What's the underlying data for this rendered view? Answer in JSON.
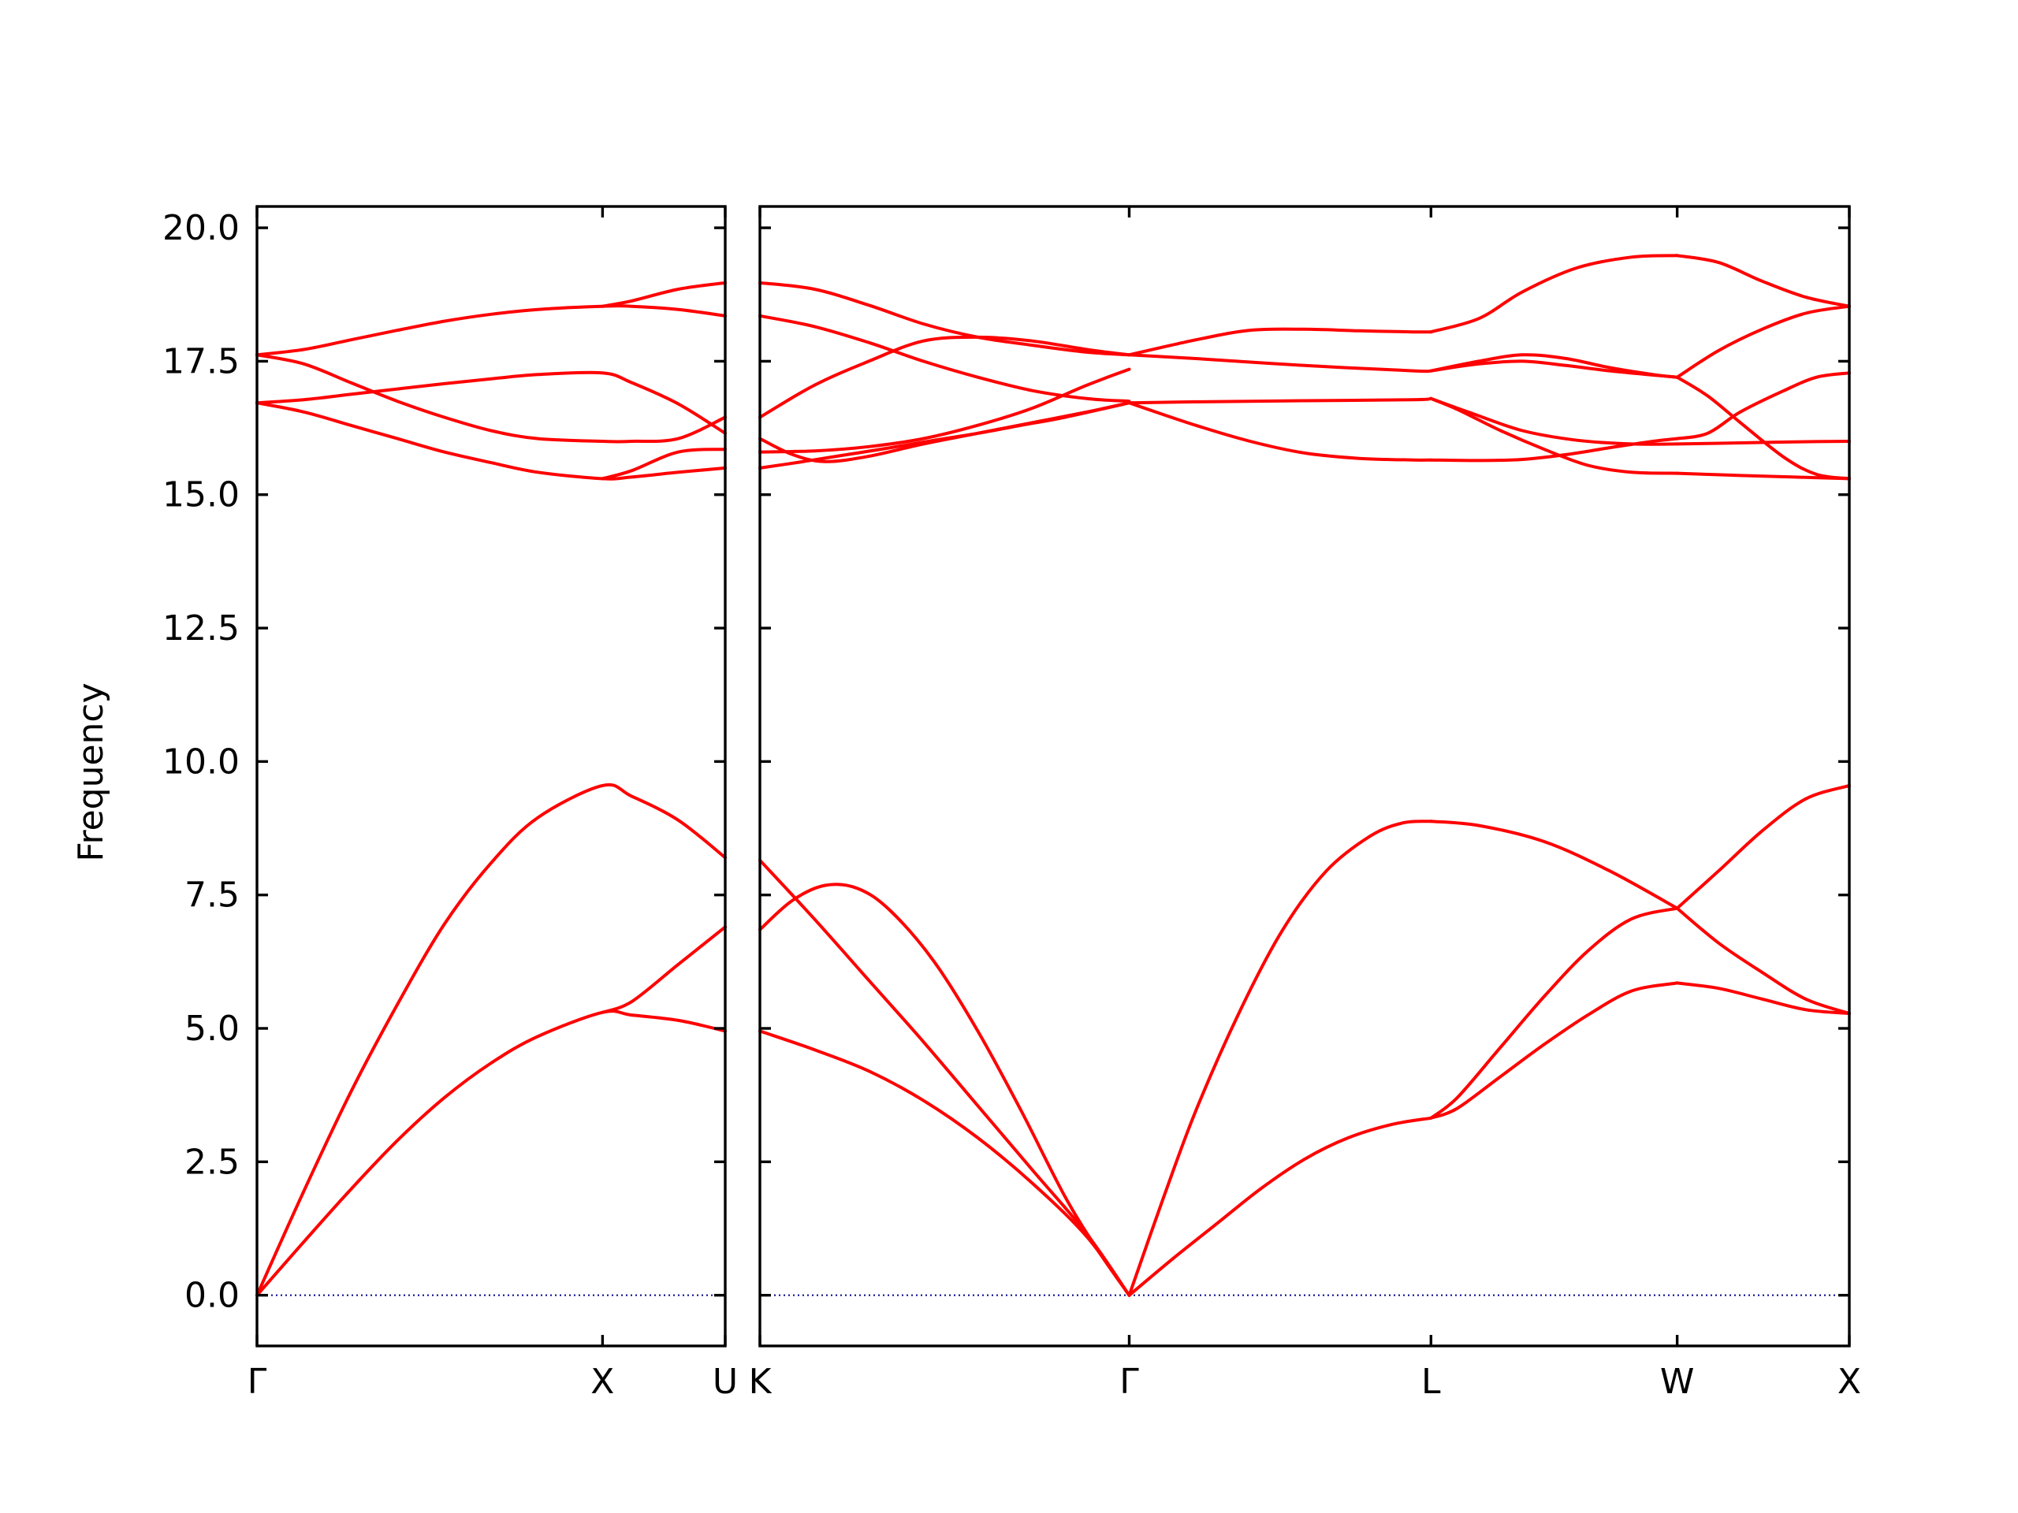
{
  "chart_data": {
    "type": "line",
    "title": "",
    "xlabel": "",
    "ylabel": "Frequency",
    "ylim": [
      -0.95,
      20.4
    ],
    "yticks": [
      "0.0",
      "2.5",
      "5.0",
      "7.5",
      "10.0",
      "12.5",
      "15.0",
      "17.5",
      "20.0"
    ],
    "ytick_values": [
      0,
      2.5,
      5,
      7.5,
      10,
      12.5,
      15,
      17.5,
      20
    ],
    "band_color": "#ff0000",
    "zero_line_color": "#00008b",
    "grid": false,
    "segments": [
      {
        "path": [
          "Γ",
          "X",
          "U"
        ],
        "labels": [
          "Γ",
          "X",
          "U"
        ],
        "label_positions": [
          0.0,
          0.738,
          1.0
        ],
        "bands": [
          {
            "x": [
              0,
              0.1,
              0.2,
              0.3,
              0.4,
              0.5,
              0.6,
              0.738,
              0.8,
              0.9,
              1.0
            ],
            "y": [
              0,
              1.0,
              1.98,
              2.9,
              3.7,
              4.35,
              4.85,
              5.3,
              5.25,
              5.15,
              4.95
            ]
          },
          {
            "x": [
              0,
              0.1,
              0.2,
              0.3,
              0.4,
              0.5,
              0.6,
              0.738,
              0.8,
              0.9,
              1.0
            ],
            "y": [
              0,
              1.95,
              3.8,
              5.45,
              6.95,
              8.1,
              8.95,
              9.55,
              9.35,
              8.9,
              8.2
            ]
          },
          {
            "x": [
              0.738,
              0.8,
              0.9,
              1.0
            ],
            "y": [
              5.3,
              5.5,
              6.2,
              6.9
            ]
          },
          {
            "x": [
              0,
              0.1,
              0.2,
              0.3,
              0.4,
              0.5,
              0.6,
              0.738,
              0.8,
              0.9,
              1.0
            ],
            "y": [
              16.72,
              16.55,
              16.3,
              16.05,
              15.8,
              15.6,
              15.42,
              15.3,
              15.33,
              15.42,
              15.5
            ]
          },
          {
            "x": [
              0,
              0.1,
              0.2,
              0.3,
              0.4,
              0.5,
              0.6,
              0.738,
              0.8,
              0.9,
              1.0
            ],
            "y": [
              16.72,
              16.78,
              16.88,
              16.98,
              17.08,
              17.17,
              17.25,
              17.28,
              17.1,
              16.7,
              16.15
            ]
          },
          {
            "x": [
              0,
              0.1,
              0.2,
              0.3,
              0.4,
              0.5,
              0.6,
              0.738,
              0.8,
              0.9,
              1.0
            ],
            "y": [
              17.62,
              17.45,
              17.1,
              16.75,
              16.45,
              16.2,
              16.05,
              16.0,
              16.0,
              16.05,
              16.45
            ]
          },
          {
            "x": [
              0.738,
              0.8,
              0.9,
              1.0
            ],
            "y": [
              15.3,
              15.45,
              15.8,
              15.85
            ]
          },
          {
            "x": [
              0,
              0.1,
              0.2,
              0.3,
              0.4,
              0.5,
              0.6,
              0.738,
              0.8,
              0.9,
              1.0
            ],
            "y": [
              17.62,
              17.72,
              17.9,
              18.08,
              18.25,
              18.38,
              18.47,
              18.53,
              18.53,
              18.47,
              18.35
            ]
          },
          {
            "x": [
              0.738,
              0.8,
              0.9,
              1.0
            ],
            "y": [
              18.53,
              18.63,
              18.85,
              18.97
            ]
          }
        ]
      },
      {
        "path": [
          "K",
          "Γ",
          "L",
          "W",
          "X"
        ],
        "labels": [
          "K",
          "Γ",
          "L",
          "W",
          "X"
        ],
        "label_positions": [
          0.0,
          0.339,
          0.616,
          0.842,
          1.0
        ],
        "bands": [
          {
            "x": [
              0,
              0.05,
              0.1,
              0.15,
              0.2,
              0.25,
              0.3,
              0.339
            ],
            "y": [
              4.95,
              4.6,
              4.2,
              3.65,
              2.95,
              2.1,
              1.1,
              0
            ]
          },
          {
            "x": [
              0,
              0.05,
              0.1,
              0.15,
              0.2,
              0.25,
              0.3,
              0.339
            ],
            "y": [
              8.15,
              7.05,
              5.9,
              4.75,
              3.55,
              2.35,
              1.15,
              0
            ]
          },
          {
            "x": [
              0,
              0.03,
              0.06,
              0.09,
              0.12,
              0.16,
              0.2,
              0.24,
              0.28,
              0.31,
              0.339
            ],
            "y": [
              6.85,
              7.4,
              7.68,
              7.62,
              7.2,
              6.25,
              4.95,
              3.45,
              1.85,
              0.85,
              0
            ]
          },
          {
            "x": [
              0.339,
              0.38,
              0.42,
              0.46,
              0.5,
              0.54,
              0.58,
              0.616
            ],
            "y": [
              0,
              0.7,
              1.35,
              2.0,
              2.55,
              2.95,
              3.2,
              3.32
            ]
          },
          {
            "x": [
              0.339,
              0.37,
              0.4,
              0.44,
              0.48,
              0.52,
              0.56,
              0.59,
              0.616
            ],
            "y": [
              0,
              1.8,
              3.45,
              5.3,
              6.85,
              7.95,
              8.6,
              8.85,
              8.88
            ]
          },
          {
            "x": [
              0.616,
              0.64,
              0.68,
              0.72,
              0.76,
              0.8,
              0.842
            ],
            "y": [
              3.32,
              3.5,
              4.1,
              4.7,
              5.25,
              5.7,
              5.85
            ]
          },
          {
            "x": [
              0.616,
              0.64,
              0.68,
              0.72,
              0.76,
              0.8,
              0.842
            ],
            "y": [
              3.32,
              3.7,
              4.65,
              5.6,
              6.45,
              7.05,
              7.25
            ]
          },
          {
            "x": [
              0.616,
              0.66,
              0.72,
              0.78,
              0.842
            ],
            "y": [
              8.88,
              8.8,
              8.5,
              7.95,
              7.25
            ]
          },
          {
            "x": [
              0.842,
              0.88,
              0.92,
              0.96,
              1.0
            ],
            "y": [
              5.85,
              5.75,
              5.55,
              5.35,
              5.28
            ]
          },
          {
            "x": [
              0.842,
              0.88,
              0.92,
              0.96,
              1.0
            ],
            "y": [
              7.25,
              6.6,
              6.05,
              5.55,
              5.28
            ]
          },
          {
            "x": [
              0.842,
              0.88,
              0.92,
              0.96,
              1.0
            ],
            "y": [
              7.25,
              7.95,
              8.7,
              9.3,
              9.55
            ]
          },
          {
            "x": [
              0,
              0.04,
              0.08,
              0.12,
              0.16,
              0.2,
              0.24,
              0.28,
              0.339
            ],
            "y": [
              15.5,
              15.62,
              15.75,
              15.88,
              16.02,
              16.15,
              16.3,
              16.45,
              16.72
            ]
          },
          {
            "x": [
              0,
              0.03,
              0.06,
              0.1,
              0.15,
              0.2,
              0.25,
              0.3,
              0.339
            ],
            "y": [
              16.05,
              15.75,
              15.62,
              15.72,
              15.95,
              16.15,
              16.35,
              16.55,
              16.72
            ]
          },
          {
            "x": [
              0.339,
              0.4,
              0.45,
              0.5,
              0.55,
              0.6,
              0.616
            ],
            "y": [
              16.72,
              16.3,
              16.0,
              15.78,
              15.68,
              15.65,
              15.65
            ]
          },
          {
            "x": [
              0.339,
              0.4,
              0.5,
              0.6,
              0.616
            ],
            "y": [
              16.72,
              16.74,
              16.76,
              16.78,
              16.8
            ]
          },
          {
            "x": [
              0.616,
              0.66,
              0.7,
              0.74,
              0.78,
              0.82,
              0.842
            ],
            "y": [
              15.65,
              15.64,
              15.66,
              15.75,
              15.88,
              16.0,
              16.05
            ]
          },
          {
            "x": [
              0.616,
              0.64,
              0.68,
              0.72,
              0.76,
              0.8,
              0.842
            ],
            "y": [
              16.8,
              16.6,
              16.2,
              15.85,
              15.55,
              15.42,
              15.4
            ]
          },
          {
            "x": [
              0.616,
              0.65,
              0.7,
              0.75,
              0.8,
              0.842
            ],
            "y": [
              16.8,
              16.55,
              16.2,
              16.02,
              15.95,
              15.95
            ]
          },
          {
            "x": [
              0.842,
              0.9,
              0.95,
              1.0
            ],
            "y": [
              15.95,
              15.97,
              15.99,
              16.0
            ]
          },
          {
            "x": [
              0.842,
              0.9,
              0.95,
              1.0
            ],
            "y": [
              15.4,
              15.36,
              15.33,
              15.3
            ]
          },
          {
            "x": [
              0.842,
              0.87,
              0.9,
              0.94,
              0.97,
              1.0
            ],
            "y": [
              16.05,
              16.15,
              16.55,
              16.95,
              17.2,
              17.28
            ]
          },
          {
            "x": [
              0.842,
              0.87,
              0.9,
              0.94,
              0.97,
              1.0
            ],
            "y": [
              17.2,
              16.85,
              16.35,
              15.7,
              15.38,
              15.3
            ]
          },
          {
            "x": [
              0,
              0.05,
              0.1,
              0.15,
              0.2,
              0.25,
              0.3,
              0.339
            ],
            "y": [
              15.8,
              15.82,
              15.9,
              16.05,
              16.3,
              16.62,
              17.05,
              17.35
            ]
          },
          {
            "x": [
              0,
              0.05,
              0.1,
              0.15,
              0.2,
              0.25,
              0.3,
              0.339
            ],
            "y": [
              16.45,
              17.05,
              17.5,
              17.88,
              17.95,
              17.88,
              17.72,
              17.62
            ]
          },
          {
            "x": [
              0,
              0.05,
              0.1,
              0.15,
              0.2,
              0.25,
              0.3,
              0.339
            ],
            "y": [
              18.35,
              18.15,
              17.85,
              17.5,
              17.2,
              16.95,
              16.8,
              16.75
            ]
          },
          {
            "x": [
              0.339,
              0.4,
              0.5,
              0.6,
              0.616
            ],
            "y": [
              17.62,
              17.55,
              17.42,
              17.32,
              17.32
            ]
          },
          {
            "x": [
              0.616,
              0.66,
              0.7,
              0.74,
              0.78,
              0.82,
              0.842
            ],
            "y": [
              17.32,
              17.5,
              17.62,
              17.55,
              17.38,
              17.25,
              17.2
            ]
          },
          {
            "x": [
              0.616,
              0.66,
              0.7,
              0.74,
              0.78,
              0.842
            ],
            "y": [
              17.32,
              17.45,
              17.5,
              17.42,
              17.32,
              17.2
            ]
          },
          {
            "x": [
              0.842,
              0.88,
              0.92,
              0.96,
              1.0
            ],
            "y": [
              17.2,
              17.7,
              18.1,
              18.4,
              18.53
            ]
          },
          {
            "x": [
              0,
              0.05,
              0.1,
              0.15,
              0.2,
              0.25,
              0.3,
              0.339
            ],
            "y": [
              18.97,
              18.85,
              18.55,
              18.2,
              17.95,
              17.8,
              17.67,
              17.62
            ]
          },
          {
            "x": [
              0.339,
              0.4,
              0.45,
              0.5,
              0.55,
              0.6,
              0.616
            ],
            "y": [
              17.62,
              17.9,
              18.08,
              18.1,
              18.07,
              18.05,
              18.05
            ]
          },
          {
            "x": [
              0.616,
              0.66,
              0.7,
              0.75,
              0.8,
              0.842
            ],
            "y": [
              18.05,
              18.3,
              18.8,
              19.25,
              19.45,
              19.48
            ]
          },
          {
            "x": [
              0.842,
              0.88,
              0.92,
              0.96,
              1.0
            ],
            "y": [
              19.48,
              19.35,
              19.0,
              18.7,
              18.53
            ]
          }
        ]
      }
    ]
  }
}
